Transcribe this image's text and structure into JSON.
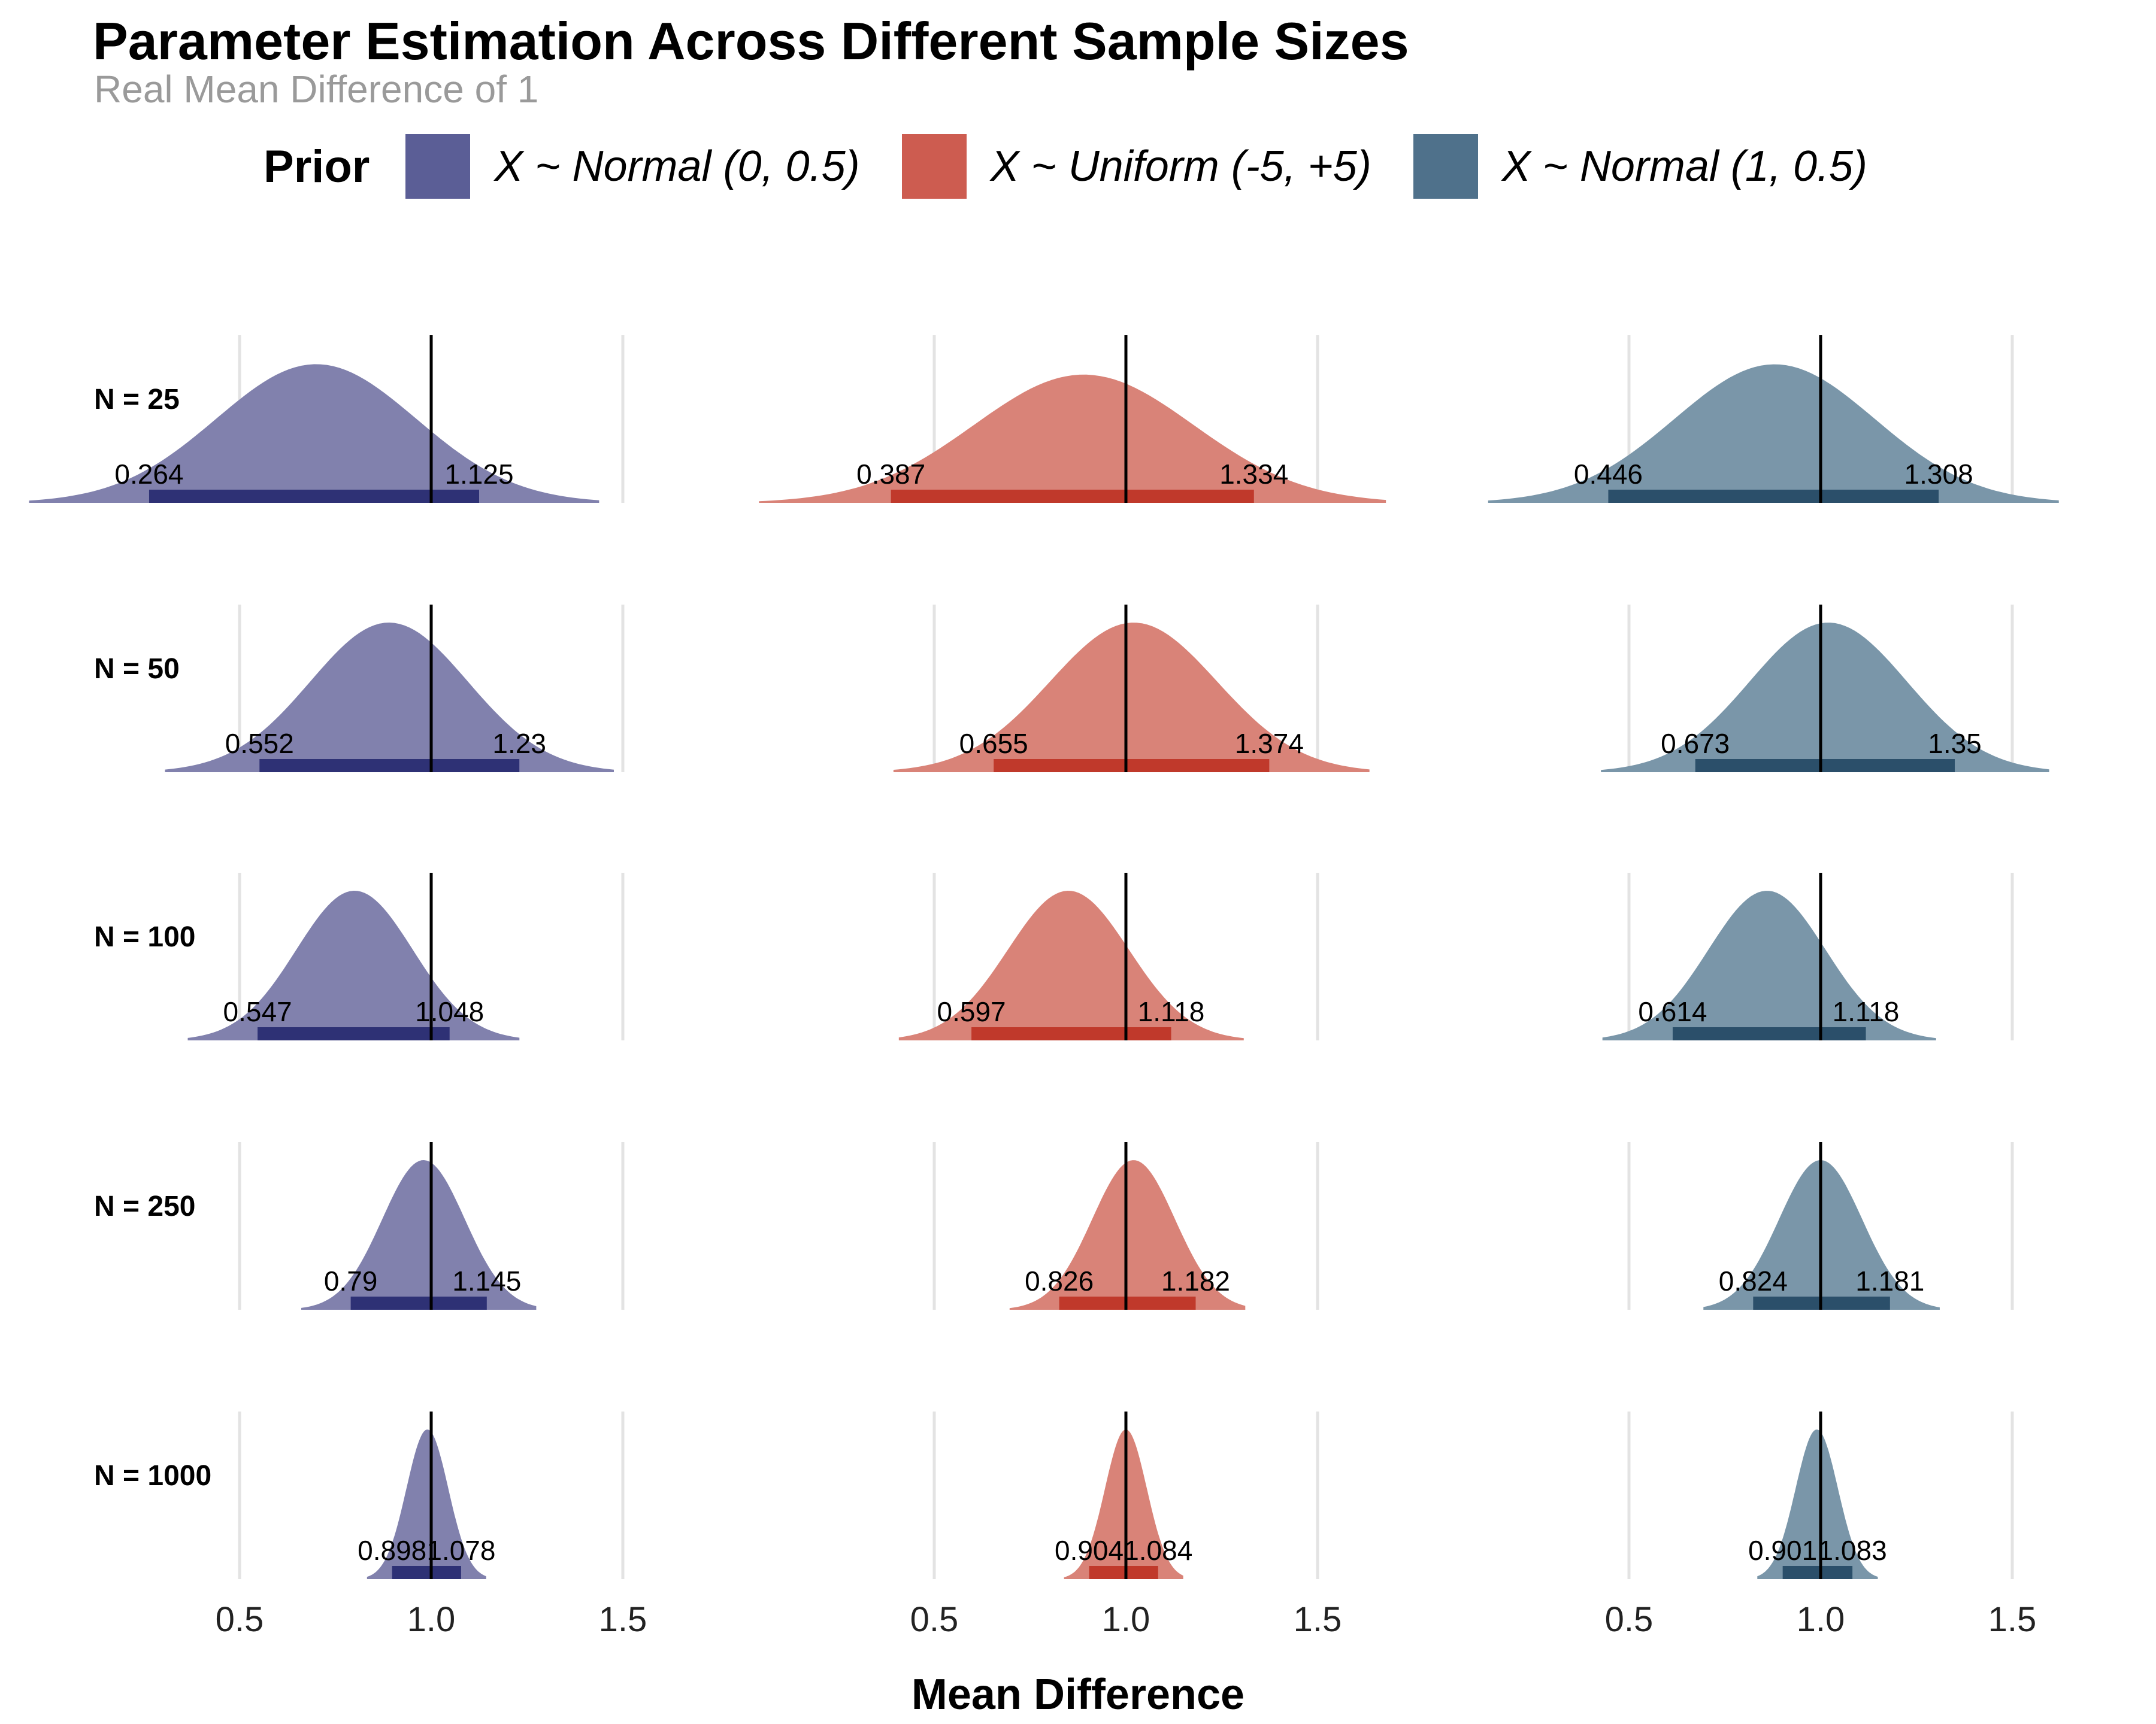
{
  "title": "Parameter Estimation Across Different Sample Sizes",
  "subtitle": "Real Mean Difference of 1",
  "legend": {
    "title": "Prior",
    "items": [
      {
        "label": "X ~ Normal (0, 0.5)",
        "color": "#5b5e96"
      },
      {
        "label": "X ~ Uniform (-5, +5)",
        "color": "#cd5c50"
      },
      {
        "label": "X ~ Normal (1, 0.5)",
        "color": "#4f718b"
      }
    ]
  },
  "chart_data": {
    "type": "area",
    "subtype": "faceted density ridges with interval bars",
    "title": "Parameter Estimation Across Different Sample Sizes",
    "subtitle": "Real Mean Difference of 1",
    "xlabel": "Mean Difference",
    "x_ticks": [
      "0.5",
      "1.0",
      "1.5"
    ],
    "reference_line": 1.0,
    "grid": true,
    "legend_position": "top",
    "rows": [
      "N = 25",
      "N = 50",
      "N = 100",
      "N = 250",
      "N = 1000"
    ],
    "columns": [
      "X ~ Normal (0, 0.5)",
      "X ~ Uniform (-5, +5)",
      "X ~ Normal (1, 0.5)"
    ],
    "fill_colors": [
      "#8181ad",
      "#d98378",
      "#7a96a9"
    ],
    "bar_colors": [
      "#2e3175",
      "#c0392b",
      "#2b4f6a"
    ],
    "intervals": [
      [
        {
          "lower": 0.264,
          "upper": 1.125
        },
        {
          "lower": 0.387,
          "upper": 1.334
        },
        {
          "lower": 0.446,
          "upper": 1.308
        }
      ],
      [
        {
          "lower": 0.552,
          "upper": 1.23
        },
        {
          "lower": 0.655,
          "upper": 1.374
        },
        {
          "lower": 0.673,
          "upper": 1.35
        }
      ],
      [
        {
          "lower": 0.547,
          "upper": 1.048
        },
        {
          "lower": 0.597,
          "upper": 1.118
        },
        {
          "lower": 0.614,
          "upper": 1.118
        }
      ],
      [
        {
          "lower": 0.79,
          "upper": 1.145
        },
        {
          "lower": 0.826,
          "upper": 1.182
        },
        {
          "lower": 0.824,
          "upper": 1.181
        }
      ],
      [
        {
          "lower": 0.898,
          "upper": 1.078
        },
        {
          "lower": 0.904,
          "upper": 1.084
        },
        {
          "lower": 0.901,
          "upper": 1.083
        }
      ]
    ],
    "density_peaks": [
      [
        0.7,
        0.89,
        0.88
      ],
      [
        0.89,
        1.02,
        1.02
      ],
      [
        0.8,
        0.85,
        0.86
      ],
      [
        0.98,
        1.02,
        1.0
      ],
      [
        0.99,
        1.0,
        0.99
      ]
    ]
  }
}
